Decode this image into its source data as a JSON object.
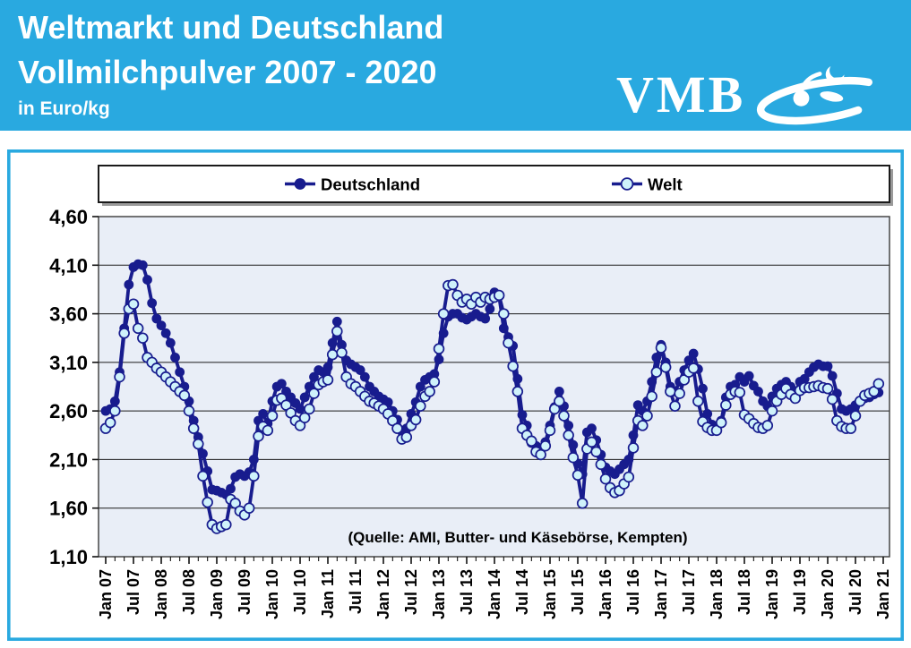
{
  "header": {
    "title_line1": "Weltmarkt und Deutschland",
    "title_line2": "Vollmilchpulver 2007 - 2020",
    "unit_label": "in Euro/kg",
    "logo_text": "VMB"
  },
  "legend": {
    "series1_label": "Deutschland",
    "series2_label": "Welt",
    "position": "top"
  },
  "source_note": "(Quelle: AMI, Butter- und Käsebörse, Kempten)",
  "colors": {
    "banner_blue": "#29A9E0",
    "frame_blue": "#29A9E0",
    "series_navy": "#181C8E",
    "welt_marker_fill": "#CFF2FB",
    "plot_background": "#E9EEF7",
    "gridline": "#1a1a1a",
    "text": "#000000"
  },
  "chart_data": {
    "type": "line",
    "title": "Weltmarkt und Deutschland Vollmilchpulver 2007 - 2020",
    "ylabel": "Euro/kg",
    "xlabel": "",
    "ylim": [
      1.1,
      4.6
    ],
    "y_tick_values": [
      1.1,
      1.6,
      2.1,
      2.6,
      3.1,
      3.6,
      4.1,
      4.6
    ],
    "y_tick_labels": [
      "1,10",
      "1,60",
      "2,10",
      "2,60",
      "3,10",
      "3,60",
      "4,10",
      "4,60"
    ],
    "x_tick_labels": [
      "Jan 07",
      "Jul 07",
      "Jan 08",
      "Jul 08",
      "Jan 09",
      "Jul 09",
      "Jan 10",
      "Jul 10",
      "Jan 11",
      "Jul 11",
      "Jan 12",
      "Jul 12",
      "Jan 13",
      "Jul 13",
      "Jan 14",
      "Jul 14",
      "Jan 15",
      "Jul 15",
      "Jan 16",
      "Jul 16",
      "Jan 17",
      "Jul 17",
      "Jan 18",
      "Jul 18",
      "Jan 19",
      "Jul 19",
      "Jan 20",
      "Jul 20",
      "Jan 21"
    ],
    "x_months_per_tick": 6,
    "grid": true,
    "legend_position": "top",
    "series": [
      {
        "name": "Deutschland",
        "marker": "filled-circle",
        "values": [
          2.6,
          2.62,
          2.7,
          3.0,
          3.45,
          3.9,
          4.08,
          4.11,
          4.1,
          3.95,
          3.71,
          3.55,
          3.48,
          3.4,
          3.3,
          3.15,
          3.0,
          2.85,
          2.7,
          2.5,
          2.33,
          2.16,
          1.98,
          1.79,
          1.78,
          1.76,
          1.74,
          1.8,
          1.92,
          1.95,
          1.93,
          1.97,
          2.1,
          2.5,
          2.57,
          2.47,
          2.7,
          2.85,
          2.88,
          2.8,
          2.74,
          2.68,
          2.62,
          2.74,
          2.85,
          2.95,
          3.02,
          3.0,
          3.05,
          3.3,
          3.52,
          3.28,
          3.12,
          3.08,
          3.05,
          3.02,
          2.95,
          2.85,
          2.8,
          2.75,
          2.72,
          2.69,
          2.6,
          2.51,
          2.4,
          2.42,
          2.57,
          2.69,
          2.85,
          2.92,
          2.95,
          2.98,
          3.13,
          3.4,
          3.57,
          3.6,
          3.6,
          3.56,
          3.54,
          3.57,
          3.6,
          3.57,
          3.55,
          3.65,
          3.82,
          3.78,
          3.45,
          3.36,
          3.27,
          2.93,
          2.56,
          2.45,
          2.27,
          2.24,
          2.21,
          2.28,
          2.45,
          2.64,
          2.8,
          2.65,
          2.45,
          2.25,
          2.06,
          1.95,
          2.38,
          2.42,
          2.3,
          2.15,
          2.02,
          1.98,
          1.95,
          2.0,
          2.05,
          2.1,
          2.35,
          2.66,
          2.6,
          2.7,
          2.9,
          3.15,
          3.28,
          3.1,
          2.85,
          2.8,
          2.9,
          3.02,
          3.12,
          3.19,
          3.03,
          2.83,
          2.57,
          2.46,
          2.43,
          2.5,
          2.74,
          2.85,
          2.87,
          2.95,
          2.9,
          2.96,
          2.86,
          2.8,
          2.7,
          2.65,
          2.75,
          2.83,
          2.87,
          2.9,
          2.85,
          2.8,
          2.9,
          2.93,
          3.0,
          3.05,
          3.08,
          3.06,
          3.06,
          2.96,
          2.78,
          2.62,
          2.6,
          2.62,
          2.66,
          2.7,
          2.73,
          2.74,
          2.77,
          2.79
        ]
      },
      {
        "name": "Welt",
        "marker": "open-circle",
        "values": [
          2.42,
          2.48,
          2.6,
          2.95,
          3.4,
          3.65,
          3.7,
          3.45,
          3.35,
          3.15,
          3.1,
          3.04,
          3.0,
          2.95,
          2.9,
          2.85,
          2.8,
          2.76,
          2.6,
          2.42,
          2.26,
          1.93,
          1.66,
          1.43,
          1.39,
          1.41,
          1.43,
          1.69,
          1.65,
          1.57,
          1.53,
          1.6,
          1.93,
          2.34,
          2.44,
          2.4,
          2.55,
          2.71,
          2.73,
          2.66,
          2.58,
          2.5,
          2.45,
          2.53,
          2.62,
          2.78,
          2.87,
          2.9,
          2.92,
          3.18,
          3.42,
          3.2,
          2.95,
          2.88,
          2.85,
          2.8,
          2.75,
          2.7,
          2.68,
          2.65,
          2.62,
          2.57,
          2.5,
          2.42,
          2.31,
          2.33,
          2.45,
          2.51,
          2.65,
          2.75,
          2.8,
          2.9,
          3.24,
          3.6,
          3.89,
          3.9,
          3.79,
          3.72,
          3.75,
          3.7,
          3.77,
          3.72,
          3.77,
          3.75,
          3.77,
          3.79,
          3.6,
          3.3,
          3.06,
          2.8,
          2.42,
          2.35,
          2.29,
          2.18,
          2.15,
          2.24,
          2.4,
          2.62,
          2.7,
          2.55,
          2.35,
          2.12,
          1.94,
          1.65,
          2.21,
          2.28,
          2.18,
          2.05,
          1.9,
          1.81,
          1.76,
          1.78,
          1.85,
          1.92,
          2.22,
          2.5,
          2.45,
          2.55,
          2.75,
          3.0,
          3.25,
          3.05,
          2.8,
          2.65,
          2.78,
          2.92,
          3.0,
          3.04,
          2.7,
          2.49,
          2.43,
          2.4,
          2.4,
          2.48,
          2.66,
          2.77,
          2.8,
          2.79,
          2.56,
          2.52,
          2.47,
          2.43,
          2.42,
          2.45,
          2.6,
          2.7,
          2.77,
          2.83,
          2.77,
          2.73,
          2.81,
          2.84,
          2.84,
          2.85,
          2.86,
          2.84,
          2.83,
          2.72,
          2.5,
          2.44,
          2.42,
          2.42,
          2.55,
          2.7,
          2.76,
          2.78,
          2.8,
          2.88
        ]
      }
    ]
  }
}
